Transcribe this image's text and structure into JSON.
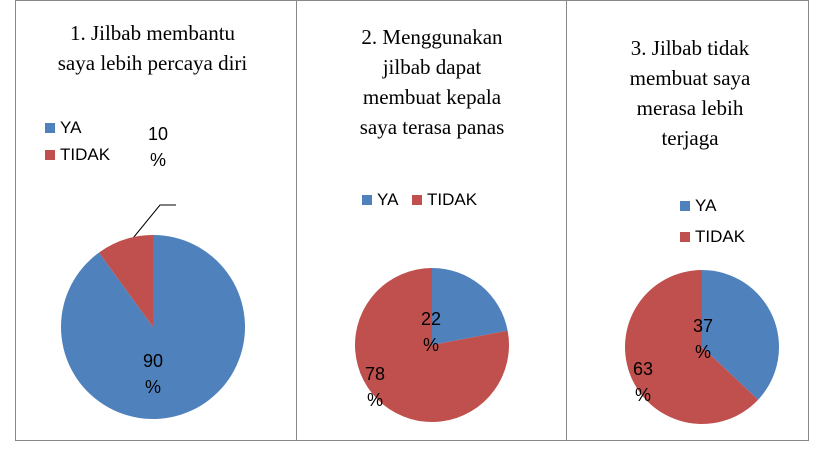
{
  "chart_data": [
    {
      "type": "pie",
      "title": "1. Jilbab membantu saya lebih percaya diri",
      "categories": [
        "YA",
        "TIDAK"
      ],
      "values": [
        90,
        10
      ],
      "value_labels": [
        "90 %",
        "10 %"
      ],
      "colors": [
        "#4f81bd",
        "#c0504d"
      ],
      "legend": "top-left"
    },
    {
      "type": "pie",
      "title": "2. Menggunakan jilbab dapat membuat kepala saya terasa panas",
      "categories": [
        "YA",
        "TIDAK"
      ],
      "values": [
        22,
        78
      ],
      "value_labels": [
        "22 %",
        "78 %"
      ],
      "colors": [
        "#4f81bd",
        "#c0504d"
      ],
      "legend": "top"
    },
    {
      "type": "pie",
      "title": "3. Jilbab tidak membuat saya merasa lebih terjaga",
      "categories": [
        "YA",
        "TIDAK"
      ],
      "values": [
        37,
        63
      ],
      "value_labels": [
        "37 %",
        "63 %"
      ],
      "colors": [
        "#4f81bd",
        "#c0504d"
      ],
      "legend": "right"
    }
  ]
}
